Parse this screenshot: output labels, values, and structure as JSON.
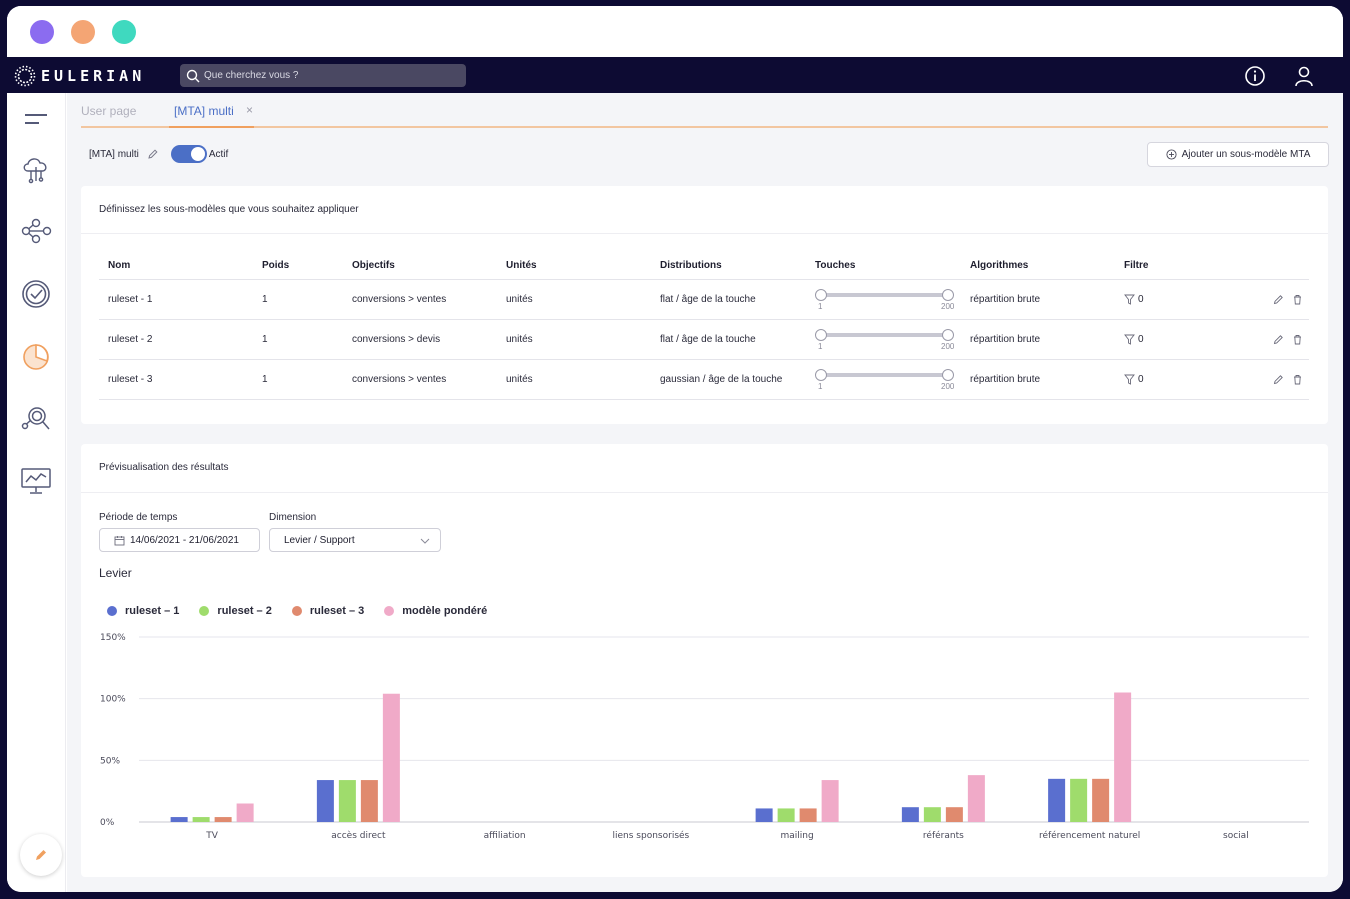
{
  "window_dots": [
    "#8b6cf0",
    "#f4a574",
    "#3fd9bf"
  ],
  "brand": {
    "name": "EULERIAN"
  },
  "search": {
    "placeholder": "Que cherchez vous ?"
  },
  "nav_icons": [
    "info-icon",
    "user-icon"
  ],
  "sidebar": {
    "items": [
      "menu-icon",
      "cloud-data-icon",
      "flow-icon",
      "check-circle-icon",
      "pie-chart-icon",
      "search-analysis-icon",
      "monitor-chart-icon"
    ],
    "fab": "pencil-icon"
  },
  "tabs": [
    {
      "label": "User page",
      "active": false
    },
    {
      "label": "[MTA] multi",
      "active": true,
      "close": "×"
    }
  ],
  "model": {
    "name": "[MTA] multi",
    "toggle_label": "Actif",
    "toggle_on": true
  },
  "add_button": {
    "label": "Ajouter un sous-modèle MTA"
  },
  "rules_card": {
    "title": "Définissez les sous-modèles que vous souhaitez appliquer",
    "columns": [
      "Nom",
      "Poids",
      "Objectifs",
      "Unités",
      "Distributions",
      "Touches",
      "Algorithmes",
      "Filtre"
    ],
    "rows": [
      {
        "name": "ruleset - 1",
        "weight": "1",
        "objective": "conversions > ventes",
        "unit": "unités",
        "distribution": "flat / âge de la touche",
        "touch_min": "1",
        "touch_max": "200",
        "algorithm": "répartition brute",
        "filter": "0"
      },
      {
        "name": "ruleset - 2",
        "weight": "1",
        "objective": "conversions > devis",
        "unit": "unités",
        "distribution": "flat / âge de la touche",
        "touch_min": "1",
        "touch_max": "200",
        "algorithm": "répartition brute",
        "filter": "0"
      },
      {
        "name": "ruleset - 3",
        "weight": "1",
        "objective": "conversions > ventes",
        "unit": "unités",
        "distribution": "gaussian / âge de la touche",
        "touch_min": "1",
        "touch_max": "200",
        "algorithm": "répartition brute",
        "filter": "0"
      }
    ]
  },
  "preview_card": {
    "title": "Prévisualisation des résultats",
    "period_label": "Période de temps",
    "period_value": "14/06/2021 - 21/06/2021",
    "dimension_label": "Dimension",
    "dimension_value": "Levier / Support",
    "chart_heading": "Levier"
  },
  "chart_data": {
    "type": "bar",
    "categories": [
      "TV",
      "accès direct",
      "affiliation",
      "liens sponsorisés",
      "mailing",
      "référants",
      "référencement naturel",
      "social"
    ],
    "series": [
      {
        "name": "ruleset – 1",
        "color": "#5a6fcf",
        "values": [
          4,
          34,
          0,
          0,
          11,
          12,
          35,
          0
        ]
      },
      {
        "name": "ruleset – 2",
        "color": "#9fdc6c",
        "values": [
          4,
          34,
          0,
          0,
          11,
          12,
          35,
          0
        ]
      },
      {
        "name": "ruleset – 3",
        "color": "#e08a6e",
        "values": [
          4,
          34,
          0,
          0,
          11,
          12,
          35,
          0
        ]
      },
      {
        "name": "modèle pondéré",
        "color": "#f0aac8",
        "values": [
          15,
          104,
          0,
          0,
          34,
          38,
          105,
          0
        ]
      }
    ],
    "ylim": [
      0,
      150
    ],
    "yticks": [
      "150%",
      "100%",
      "50%",
      "0%"
    ],
    "ytick_values": [
      150,
      100,
      50,
      0
    ],
    "grid": true,
    "legend": "top-left"
  }
}
